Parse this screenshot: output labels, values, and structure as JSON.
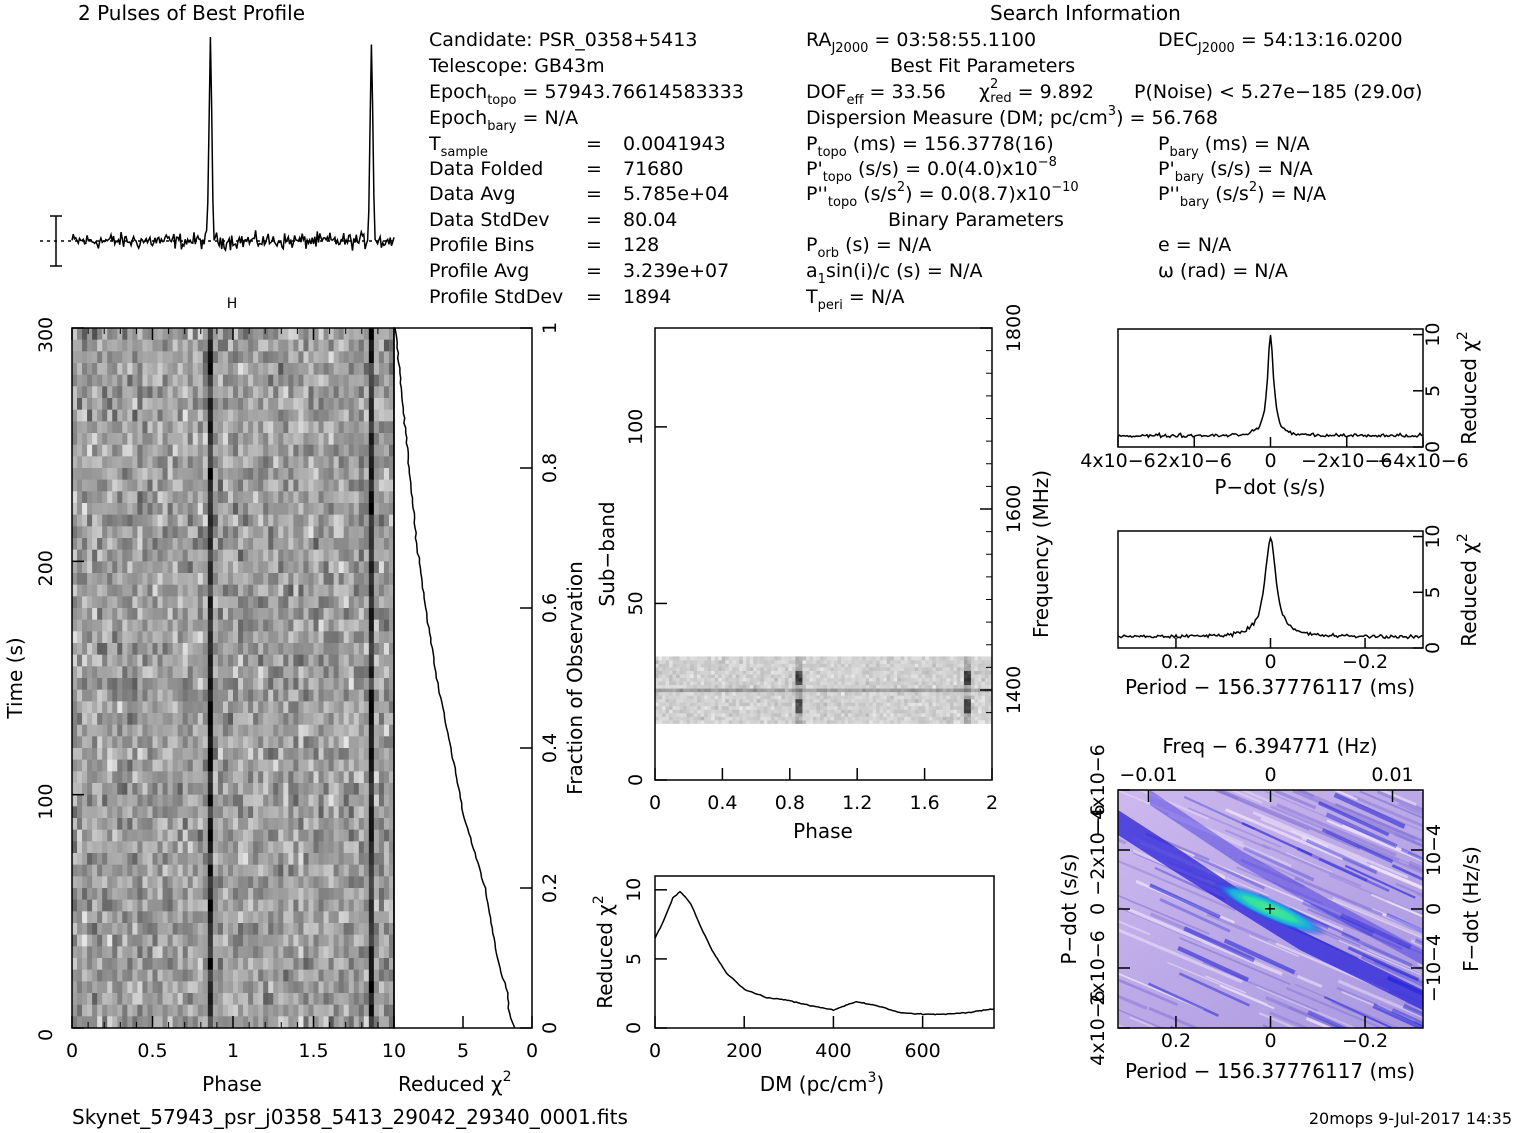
{
  "filename": "Skynet_57943_psr_j0358_5413_29042_29340_0001.fits",
  "footer_right": "20mops   9-Jul-2017 14:35",
  "profile_title": "2 Pulses of Best Profile",
  "search_title": "Search Information",
  "info_left": [
    [
      "Candidate:  PSR_0358+5413",
      ""
    ],
    [
      "Telescope:  GB43m",
      ""
    ],
    [
      "Epoch",
      "topo",
      " = 57943.76614583333"
    ],
    [
      "Epoch",
      "bary",
      " = N/A"
    ],
    [
      "T",
      "sample",
      "       =  0.0041943"
    ],
    [
      "Data Folded     =  71680",
      ""
    ],
    [
      "Data Avg        =  5.785e+04",
      ""
    ],
    [
      "Data StdDev     =  80.04",
      ""
    ],
    [
      "Profile Bins    =  128",
      ""
    ],
    [
      "Profile Avg     =  3.239e+07",
      ""
    ],
    [
      "Profile StdDev  =  1894",
      ""
    ]
  ],
  "info_text": {
    "candidate": "Candidate:  PSR_0358+5413",
    "telescope": "Telescope:  GB43m",
    "epoch_topo": "= 57943.76614583333",
    "epoch_bary": "= N/A",
    "tsample": "0.0041943",
    "data_folded_label": "Data Folded",
    "data_folded": "71680",
    "data_avg_label": "Data Avg",
    "data_avg": "5.785e+04",
    "data_std_label": "Data StdDev",
    "data_std": "80.04",
    "prof_bins_label": "Profile Bins",
    "prof_bins": "128",
    "prof_avg_label": "Profile Avg",
    "prof_avg": "3.239e+07",
    "prof_std_label": "Profile StdDev",
    "prof_std": "1894",
    "ra": "= 03:58:55.1100",
    "dec": "= 54:13:16.0200",
    "best_fit": "Best Fit Parameters",
    "dof": "= 33.56",
    "chi2red": "= 9.892",
    "pnoise": "P(Noise) < 5.27e−185  (29.0σ)",
    "dm_line": "Dispersion Measure (DM; pc/cm",
    "dm_val": ") = 56.768",
    "ptopo": "(ms) =  156.3778(16)",
    "pbary": "(ms) = N/A",
    "pdtopo": "(s/s) = 0.0(4.0)x10",
    "pdtopo_exp": "−8",
    "pdbary": "(s/s) = N/A",
    "pddtopo": "(s/s",
    "pddtopo2": ") = 0.0(8.7)x10",
    "pddtopo_exp": "−10",
    "pddbary": "(s/s",
    "pddbary2": ") = N/A",
    "binary": "Binary Parameters",
    "porb": "(s) = N/A",
    "ecc": "e = N/A",
    "a1": "a",
    "a1rest": "sin(i)/c (s) = N/A",
    "omega": "ω (rad) = N/A",
    "tperi": "= N/A"
  },
  "axes": {
    "phase": "Phase",
    "time": "Time (s)",
    "reduced_chi2": "Reduced χ",
    "fraction_obs": "Fraction of Observation",
    "subband": "Sub−band",
    "frequency": "Frequency (MHz)",
    "dm": "DM (pc/cm",
    "pdot": "P−dot (s/s)",
    "period": "Period − 156.37776117 (ms)",
    "freq_top": "Freq − 6.394771 (Hz)",
    "fdot": "F−dot (Hz/s)"
  },
  "colors": {
    "ink": "#000000",
    "ppdot_bg": "#b9a8e6",
    "ppdot_dark": "#1a1ad6",
    "ppdot_peak": "#33e0a0"
  },
  "chart_data": [
    {
      "type": "line",
      "name": "profile",
      "title": "2 Pulses of Best Profile",
      "x_range": [
        0,
        2
      ],
      "peaks_at_phase": [
        0.86,
        1.86
      ],
      "peak_height_relative": 1.0
    },
    {
      "type": "heatmap",
      "name": "time-phase",
      "xlabel": "Phase",
      "ylabel": "Time (s)",
      "xlim": [
        0,
        2
      ],
      "ylim": [
        0,
        300
      ],
      "xticks": [
        "0",
        "0.5",
        "1",
        "1.5"
      ],
      "yticks": [
        "0",
        "100",
        "200",
        "300"
      ],
      "pulse_phase": 0.86
    },
    {
      "type": "line",
      "name": "reduced-chi2-vs-time",
      "xlabel": "Reduced χ2",
      "xlim": [
        10,
        0
      ],
      "xticks": [
        "10",
        "5",
        "0"
      ],
      "y2label": "Fraction of Observation",
      "y2ticks": [
        "0",
        "0.2",
        "0.4",
        "0.6",
        "0.8",
        "1"
      ],
      "fraction": [
        0.0,
        0.02,
        0.05,
        0.1,
        0.2,
        0.3,
        0.4,
        0.5,
        0.6,
        0.7,
        0.8,
        0.9,
        1.0
      ],
      "chi2": [
        1.3,
        1.6,
        1.8,
        2.5,
        3.4,
        4.9,
        5.9,
        6.9,
        7.7,
        8.4,
        8.9,
        9.4,
        9.9
      ]
    },
    {
      "type": "heatmap",
      "name": "subband-phase",
      "xlabel": "Phase",
      "ylabel": "Sub−band",
      "y2label": "Frequency (MHz)",
      "xlim": [
        0,
        2
      ],
      "ylim": [
        0,
        128
      ],
      "xticks": [
        "0",
        "0.4",
        "0.8",
        "1.2",
        "1.6",
        "2"
      ],
      "yticks": [
        "0",
        "50",
        "100"
      ],
      "y2ticks": [
        "1400",
        "1600",
        "1800"
      ],
      "occupied_subbands": [
        16,
        35
      ]
    },
    {
      "type": "line",
      "name": "dm-curve",
      "xlabel": "DM (pc/cm3)",
      "ylabel": "Reduced χ2",
      "xlim": [
        0,
        760
      ],
      "ylim": [
        0,
        11
      ],
      "xticks": [
        "0",
        "200",
        "400",
        "600"
      ],
      "yticks": [
        "0",
        "5",
        "10"
      ],
      "x": [
        0,
        20,
        40,
        57,
        80,
        100,
        130,
        160,
        200,
        250,
        300,
        350,
        400,
        450,
        500,
        550,
        600,
        650,
        700,
        760
      ],
      "y": [
        6.5,
        7.8,
        9.4,
        9.9,
        9.0,
        7.5,
        5.5,
        4.0,
        2.8,
        2.2,
        2.0,
        1.6,
        1.3,
        1.9,
        1.6,
        1.1,
        1.0,
        1.0,
        1.1,
        1.4
      ]
    },
    {
      "type": "line",
      "name": "pdot-curve",
      "xlabel": "P−dot (s/s)",
      "ylabel": "Reduced χ2",
      "xlim": [
        4e-06,
        -4e-06
      ],
      "ylim": [
        0,
        10
      ],
      "xticks": [
        "4x10−6",
        "2x10−6",
        "0",
        "−2x10−6",
        "−4x10−6"
      ],
      "yticks": [
        "0",
        "5",
        "10"
      ],
      "peak_at": 0,
      "peak_value": 9.9,
      "baseline": 1.0
    },
    {
      "type": "line",
      "name": "period-curve",
      "xlabel": "Period − 156.37776117 (ms)",
      "ylabel": "Reduced χ2",
      "xlim": [
        0.32,
        -0.32
      ],
      "ylim": [
        0,
        10
      ],
      "xticks": [
        "0.2",
        "0",
        "−0.2"
      ],
      "yticks": [
        "0",
        "5",
        "10"
      ],
      "peak_at": 0,
      "peak_value": 9.9,
      "baseline": 1.0
    },
    {
      "type": "heatmap",
      "name": "p-pdot-plane",
      "xlabel": "Period − 156.37776117 (ms)",
      "ylabel": "P−dot (s/s)",
      "x2label": "Freq − 6.394771 (Hz)",
      "y2label": "F−dot (Hz/s)",
      "xlim": [
        0.32,
        -0.32
      ],
      "xticks": [
        "0.2",
        "0",
        "−0.2"
      ],
      "x2ticks": [
        "−0.01",
        "0",
        "0.01"
      ],
      "yticks": [
        "4x10−6",
        "2x10−6",
        "0",
        "−2x10−6",
        "−4x10−6"
      ],
      "y2ticks": [
        "−10−4",
        "0",
        "10−4"
      ],
      "peak_at": [
        0,
        0
      ]
    }
  ]
}
